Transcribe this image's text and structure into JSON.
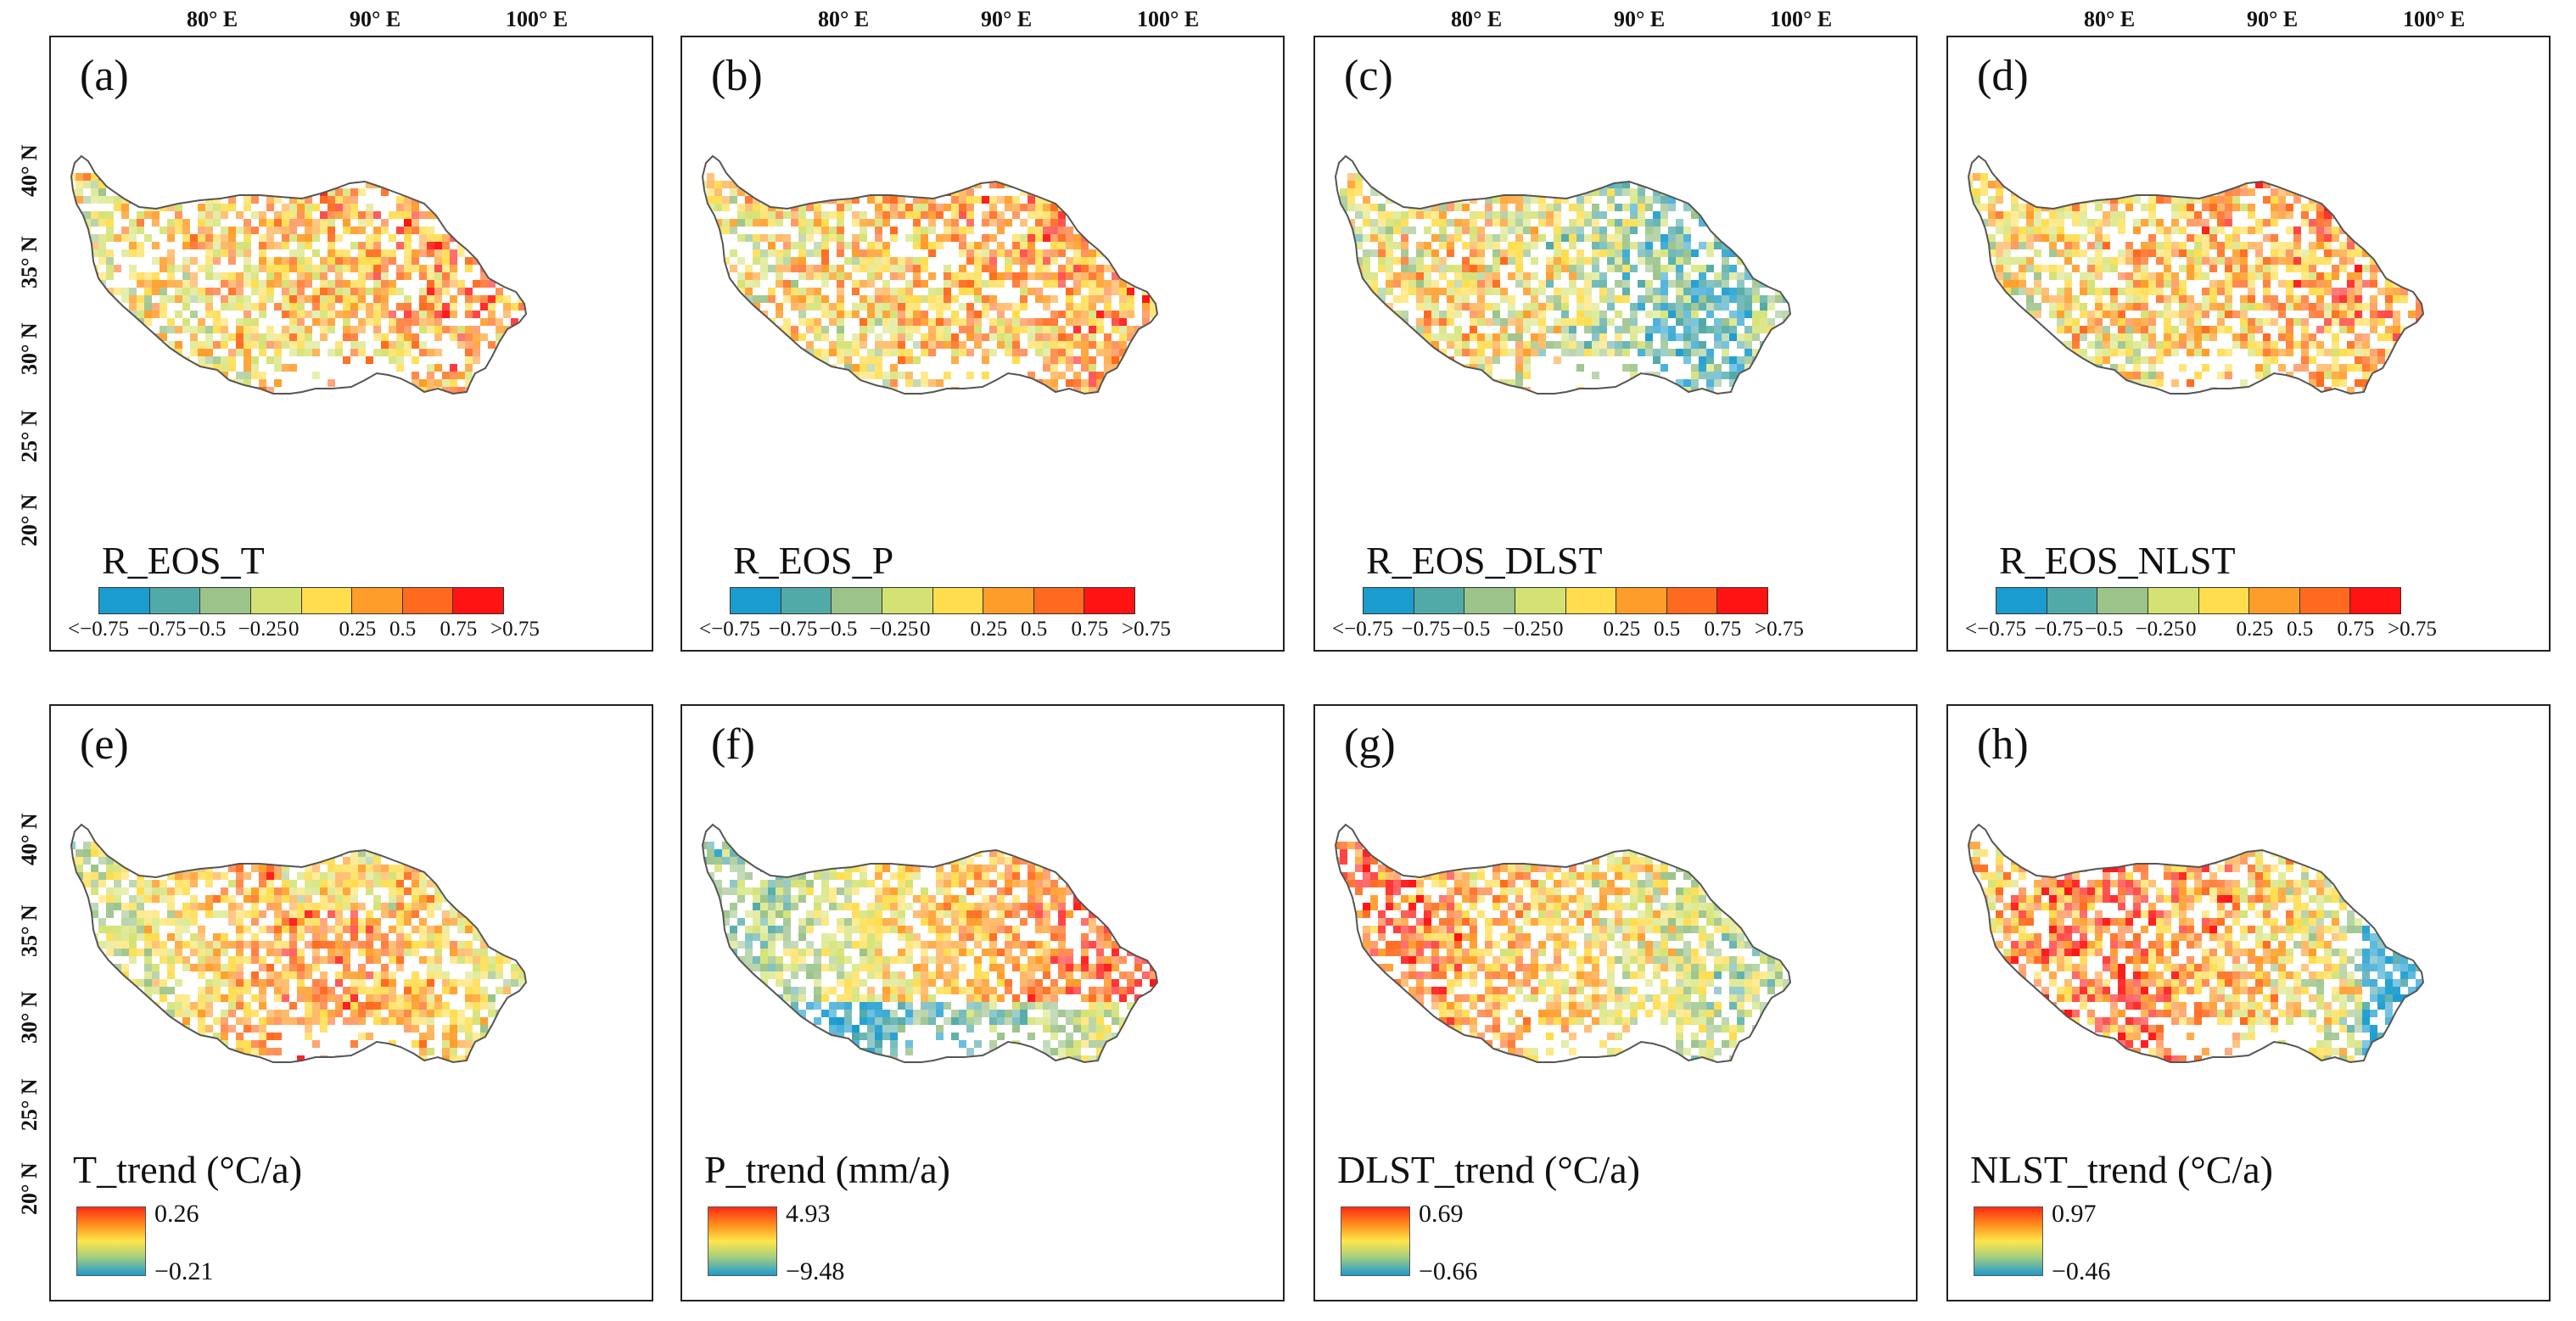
{
  "lon_ticks": [
    "80° E",
    "90° E",
    "100° E"
  ],
  "lat_ticks": [
    "40° N",
    "35° N",
    "30° N",
    "25° N",
    "20° N"
  ],
  "colors": {
    "class_palette": [
      "#1b9ccf",
      "#52aaa8",
      "#9cc38a",
      "#d4e273",
      "#ffdd4d",
      "#ff9d2a",
      "#ff6a1e",
      "#ff1313"
    ],
    "gradient_top": "#ff2a14",
    "gradient_bottom": "#1e9ad0"
  },
  "class_ticks": [
    "<−0.75",
    "−0.75",
    "−0.5",
    "−0.25",
    "0",
    "0.25",
    "0.5",
    "0.75",
    ">0.75"
  ],
  "top_panels": [
    {
      "letter": "(a)",
      "legend": "R_EOS_T",
      "pattern": "warm"
    },
    {
      "letter": "(b)",
      "legend": "R_EOS_P",
      "pattern": "warm"
    },
    {
      "letter": "(c)",
      "legend": "R_EOS_DLST",
      "pattern": "mixed"
    },
    {
      "letter": "(d)",
      "legend": "R_EOS_NLST",
      "pattern": "warm"
    }
  ],
  "bottom_panels": [
    {
      "letter": "(e)",
      "legend": "T_trend (°C/a)",
      "max": "0.26",
      "min": "−0.21",
      "pattern": "east-warm"
    },
    {
      "letter": "(f)",
      "legend": "P_trend (mm/a)",
      "max": "4.93",
      "min": "−9.48",
      "pattern": "east-hot"
    },
    {
      "letter": "(g)",
      "legend": "DLST_trend (°C/a)",
      "max": "0.69",
      "min": "−0.66",
      "pattern": "west-hot"
    },
    {
      "letter": "(h)",
      "legend": "NLST_trend (°C/a)",
      "max": "0.97",
      "min": "−0.46",
      "pattern": "center-hot"
    }
  ]
}
